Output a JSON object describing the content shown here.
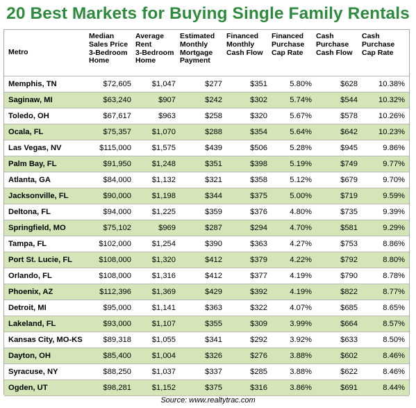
{
  "title": "20 Best Markets for Buying Single Family Rentals",
  "colors": {
    "title_green": "#2e8b3e",
    "band_green": "#d4e6b8",
    "border_gray": "#b9b9b9"
  },
  "table": {
    "headers": [
      "Metro",
      "Median\nSales Price\n3-Bedroom\nHome",
      "Average\nRent\n3-Bedroom\nHome",
      "Estimated\nMonthly\nMortgage\nPayment",
      "Financed\nMonthly\nCash Flow",
      "Financed\nPurchase\nCap Rate",
      "Cash\nPurchase\nCash Flow",
      "Cash\nPurchase\nCap Rate"
    ],
    "rows": [
      [
        "Memphis, TN",
        "$72,605",
        "$1,047",
        "$277",
        "$351",
        "5.80%",
        "$628",
        "10.38%"
      ],
      [
        "Saginaw, MI",
        "$63,240",
        "$907",
        "$242",
        "$302",
        "5.74%",
        "$544",
        "10.32%"
      ],
      [
        "Toledo, OH",
        "$67,617",
        "$963",
        "$258",
        "$320",
        "5.67%",
        "$578",
        "10.26%"
      ],
      [
        "Ocala, FL",
        "$75,357",
        "$1,070",
        "$288",
        "$354",
        "5.64%",
        "$642",
        "10.23%"
      ],
      [
        "Las Vegas, NV",
        "$115,000",
        "$1,575",
        "$439",
        "$506",
        "5.28%",
        "$945",
        "9.86%"
      ],
      [
        "Palm Bay, FL",
        "$91,950",
        "$1,248",
        "$351",
        "$398",
        "5.19%",
        "$749",
        "9.77%"
      ],
      [
        "Atlanta, GA",
        "$84,000",
        "$1,132",
        "$321",
        "$358",
        "5.12%",
        "$679",
        "9.70%"
      ],
      [
        "Jacksonville, FL",
        "$90,000",
        "$1,198",
        "$344",
        "$375",
        "5.00%",
        "$719",
        "9.59%"
      ],
      [
        "Deltona, FL",
        "$94,000",
        "$1,225",
        "$359",
        "$376",
        "4.80%",
        "$735",
        "9.39%"
      ],
      [
        "Springfield, MO",
        "$75,102",
        "$969",
        "$287",
        "$294",
        "4.70%",
        "$581",
        "9.29%"
      ],
      [
        "Tampa, FL",
        "$102,000",
        "$1,254",
        "$390",
        "$363",
        "4.27%",
        "$753",
        "8.86%"
      ],
      [
        "Port St. Lucie, FL",
        "$108,000",
        "$1,320",
        "$412",
        "$379",
        "4.22%",
        "$792",
        "8.80%"
      ],
      [
        "Orlando, FL",
        "$108,000",
        "$1,316",
        "$412",
        "$377",
        "4.19%",
        "$790",
        "8.78%"
      ],
      [
        "Phoenix, AZ",
        "$112,396",
        "$1,369",
        "$429",
        "$392",
        "4.19%",
        "$822",
        "8.77%"
      ],
      [
        "Detroit, MI",
        "$95,000",
        "$1,141",
        "$363",
        "$322",
        "4.07%",
        "$685",
        "8.65%"
      ],
      [
        "Lakeland, FL",
        "$93,000",
        "$1,107",
        "$355",
        "$309",
        "3.99%",
        "$664",
        "8.57%"
      ],
      [
        "Kansas City, MO-KS",
        "$89,318",
        "$1,055",
        "$341",
        "$292",
        "3.92%",
        "$633",
        "8.50%"
      ],
      [
        "Dayton, OH",
        "$85,400",
        "$1,004",
        "$326",
        "$276",
        "3.88%",
        "$602",
        "8.46%"
      ],
      [
        "Syracuse, NY",
        "$88,250",
        "$1,037",
        "$337",
        "$285",
        "3.88%",
        "$622",
        "8.46%"
      ],
      [
        "Ogden, UT",
        "$98,281",
        "$1,152",
        "$375",
        "$316",
        "3.86%",
        "$691",
        "8.44%"
      ]
    ]
  },
  "source": "Source: www.realtytrac.com"
}
